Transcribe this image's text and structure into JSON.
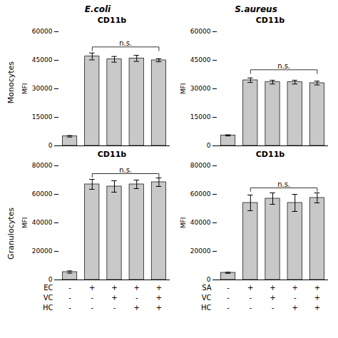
{
  "col_titles": [
    "E.coli",
    "S.aureus"
  ],
  "row_titles": [
    "Monocytes",
    "Granulocytes"
  ],
  "chart_data": [
    {
      "type": "bar",
      "title": "CD11b",
      "ylabel": "MFI",
      "categories": [
        null,
        null,
        null,
        null,
        null
      ],
      "values": [
        5000,
        47000,
        45500,
        46000,
        45000
      ],
      "errors": [
        400,
        1800,
        1500,
        1600,
        800
      ],
      "color": "#c8c8c8",
      "ylim": [
        0,
        60000
      ],
      "yticks": [
        0,
        15000,
        30000,
        45000,
        60000
      ],
      "tick_labels": "y",
      "annotations": [
        {
          "text": "n.s.",
          "x": [
            1,
            4
          ],
          "y": [
            50000,
            52000
          ]
        }
      ]
    },
    {
      "type": "bar",
      "title": "CD11b",
      "ylabel": "MFI",
      "categories": [
        null,
        null,
        null,
        null,
        null
      ],
      "values": [
        5500,
        34500,
        33500,
        33500,
        33000
      ],
      "errors": [
        300,
        1200,
        1000,
        1000,
        1000
      ],
      "color": "#c8c8c8",
      "ylim": [
        0,
        60000
      ],
      "yticks": [
        0,
        15000,
        30000,
        45000,
        60000
      ],
      "tick_labels": "y",
      "annotations": [
        {
          "text": "n.s.",
          "x": [
            1,
            4
          ],
          "y": [
            38000,
            40000
          ]
        }
      ]
    },
    {
      "type": "bar",
      "title": "CD11b",
      "ylabel": "MFI",
      "categories": [
        null,
        null,
        null,
        null,
        null
      ],
      "values": [
        5500,
        67000,
        65500,
        67000,
        68500
      ],
      "errors": [
        800,
        3500,
        4000,
        3000,
        3000
      ],
      "color": "#c8c8c8",
      "ylim": [
        0,
        80000
      ],
      "yticks": [
        0,
        20000,
        40000,
        60000,
        80000
      ],
      "tick_labels": "y",
      "annotations": [
        {
          "text": "n.s.",
          "x": [
            1,
            4
          ],
          "y": [
            72000,
            74500
          ]
        }
      ],
      "table": {
        "row_names": [
          "EC",
          "VC",
          "HC"
        ],
        "columns": [
          [
            "-",
            "-",
            "-"
          ],
          [
            "+",
            "-",
            "-"
          ],
          [
            "+",
            "+",
            "-"
          ],
          [
            "+",
            "-",
            "+"
          ],
          [
            "+",
            "+",
            "+"
          ]
        ]
      }
    },
    {
      "type": "bar",
      "title": "CD11b",
      "ylabel": "MFI",
      "categories": [
        null,
        null,
        null,
        null,
        null
      ],
      "values": [
        5000,
        54000,
        57000,
        54000,
        57500
      ],
      "errors": [
        400,
        5500,
        4000,
        6000,
        3500
      ],
      "color": "#c8c8c8",
      "ylim": [
        0,
        80000
      ],
      "yticks": [
        0,
        20000,
        40000,
        60000,
        80000
      ],
      "tick_labels": "y",
      "annotations": [
        {
          "text": "n.s.",
          "x": [
            1,
            4
          ],
          "y": [
            62000,
            64500
          ]
        }
      ],
      "table": {
        "row_names": [
          "SA",
          "VC",
          "HC"
        ],
        "columns": [
          [
            "-",
            "-",
            "-"
          ],
          [
            "+",
            "-",
            "-"
          ],
          [
            "+",
            "+",
            "-"
          ],
          [
            "+",
            "-",
            "+"
          ],
          [
            "+",
            "+",
            "+"
          ]
        ]
      }
    }
  ]
}
